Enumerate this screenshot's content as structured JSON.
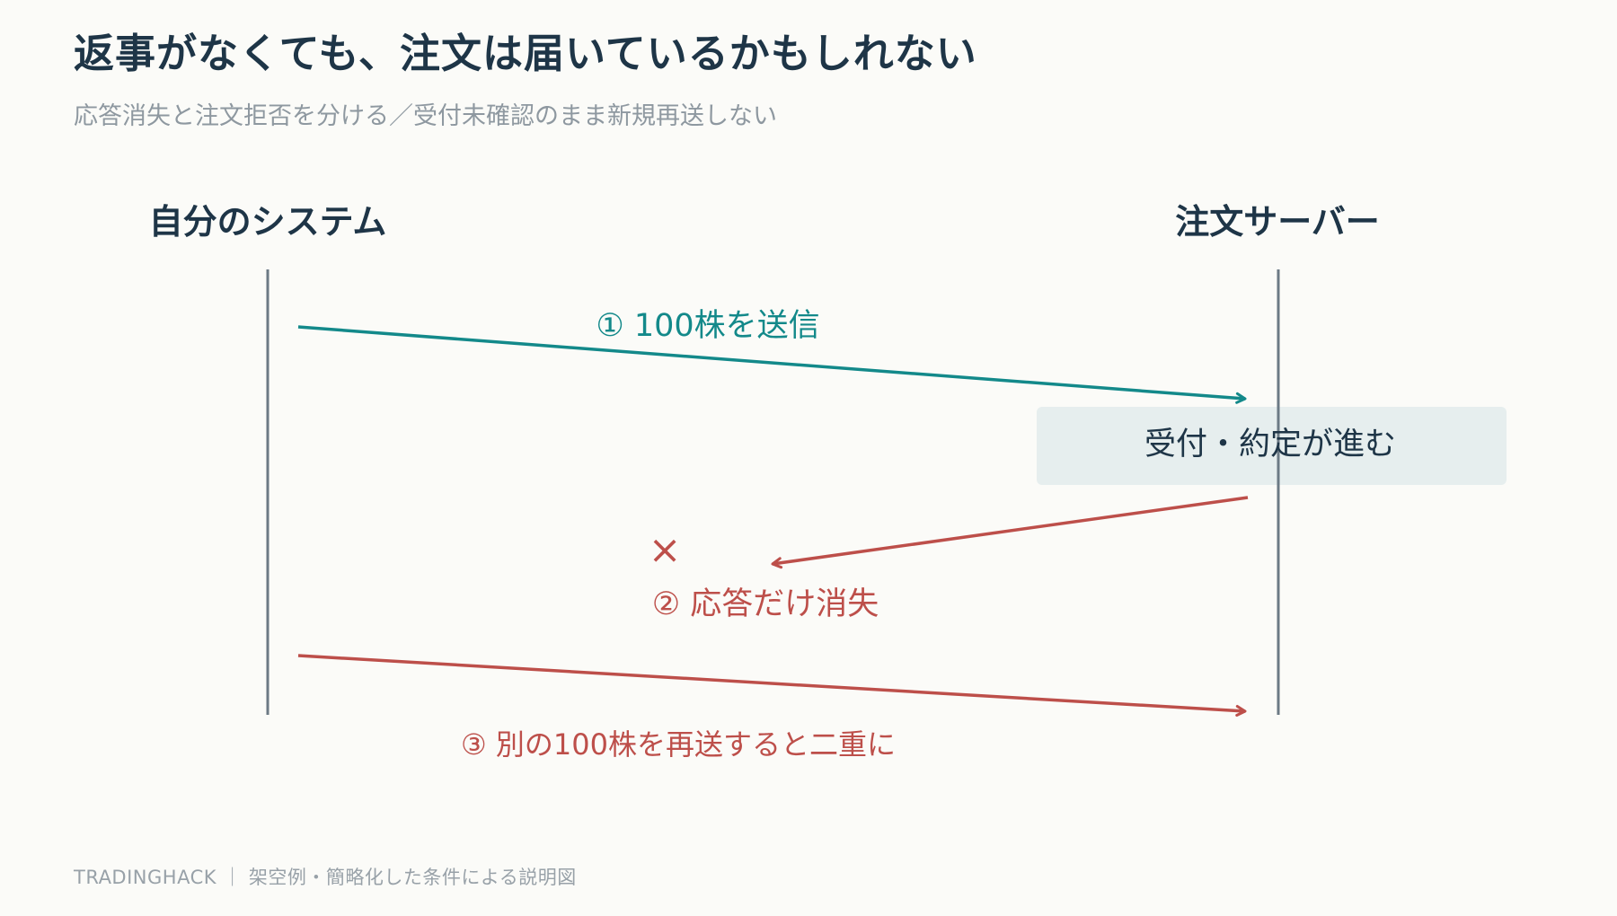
{
  "title": "返事がなくても、注文は届いているかもしれない",
  "subtitle": "応答消失と注文拒否を分ける／受付未確認のまま新規再送しない",
  "diagram": {
    "actors": {
      "left": "自分のシステム",
      "right": "注文サーバー"
    },
    "steps": {
      "send": "① 100株を送信",
      "processing": "受付・約定が進む",
      "lost_mark": "×",
      "lost": "② 応答だけ消失",
      "resend": "③ 別の100株を再送すると二重に"
    }
  },
  "footer": "TRADINGHACK ｜ 架空例・簡略化した条件による説明図",
  "colors": {
    "background": "#fbfbf8",
    "title": "#1e3547",
    "teal": "#13898a",
    "red": "#bd4f4a",
    "lifeline": "#6c7a85",
    "processing_box": "#e6eeee"
  }
}
